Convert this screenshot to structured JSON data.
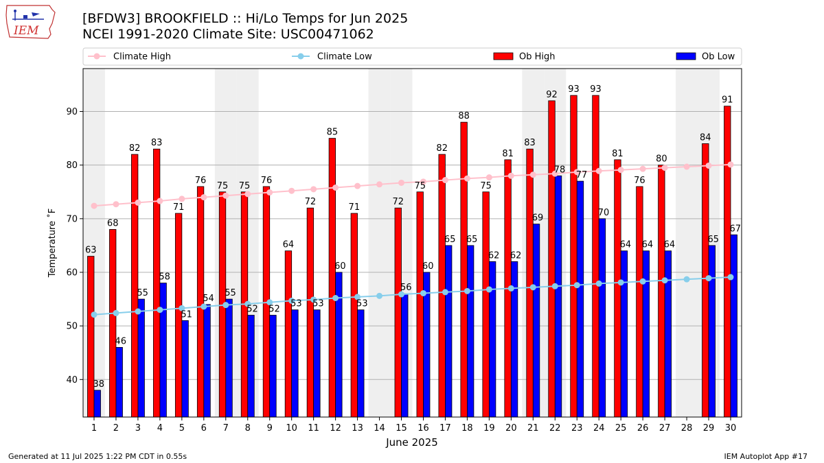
{
  "header": {
    "title_line1": "[BFDW3] BROOKFIELD :: Hi/Lo Temps for Jun 2025",
    "title_line2": "NCEI 1991-2020 Climate Site: USC00471062"
  },
  "footer": {
    "generated": "Generated at 11 Jul 2025 1:22 PM CDT in 0.55s",
    "app": "IEM Autoplot App #17"
  },
  "logo": {
    "text": "IEM",
    "icon": "iem-iowa-logo-icon"
  },
  "colors": {
    "ob_high": "#ff0000",
    "ob_low": "#0000ff",
    "climate_high": "#ffc0cb",
    "climate_low": "#87ceeb",
    "weekend_shade": "#efefef",
    "grid": "#b0b0b0"
  },
  "chart_data": {
    "type": "bar",
    "xlabel": "June 2025",
    "ylabel": "Temperature ˚F",
    "ylim": [
      33,
      98
    ],
    "yticks": [
      40,
      50,
      60,
      70,
      80,
      90
    ],
    "grid": "horizontal",
    "legend_position": "top",
    "categories": [
      "1",
      "2",
      "3",
      "4",
      "5",
      "6",
      "7",
      "8",
      "9",
      "10",
      "11",
      "12",
      "13",
      "14",
      "15",
      "16",
      "17",
      "18",
      "19",
      "20",
      "21",
      "22",
      "23",
      "24",
      "25",
      "26",
      "27",
      "28",
      "29",
      "30"
    ],
    "weekend_days": [
      1,
      7,
      8,
      14,
      15,
      21,
      22,
      28,
      29
    ],
    "series": [
      {
        "name": "Ob High",
        "kind": "bar",
        "values": [
          63,
          68,
          82,
          83,
          71,
          76,
          75,
          75,
          76,
          64,
          72,
          85,
          71,
          null,
          72,
          75,
          82,
          88,
          75,
          81,
          83,
          92,
          93,
          93,
          81,
          76,
          80,
          null,
          84,
          91
        ]
      },
      {
        "name": "Ob Low",
        "kind": "bar",
        "values": [
          38,
          46,
          55,
          58,
          51,
          54,
          55,
          52,
          52,
          53,
          53,
          60,
          53,
          null,
          56,
          60,
          65,
          65,
          62,
          62,
          69,
          78,
          77,
          70,
          64,
          64,
          64,
          null,
          65,
          67
        ]
      },
      {
        "name": "Climate High",
        "kind": "line",
        "values": [
          72.4,
          72.7,
          73.0,
          73.3,
          73.7,
          74.0,
          74.3,
          74.6,
          74.9,
          75.2,
          75.5,
          75.8,
          76.1,
          76.4,
          76.7,
          76.9,
          77.2,
          77.5,
          77.7,
          78.0,
          78.2,
          78.4,
          78.7,
          78.9,
          79.1,
          79.3,
          79.5,
          79.7,
          79.9,
          80.1
        ]
      },
      {
        "name": "Climate Low",
        "kind": "line",
        "values": [
          52.1,
          52.4,
          52.7,
          53.0,
          53.3,
          53.6,
          53.9,
          54.1,
          54.4,
          54.7,
          54.9,
          55.2,
          55.4,
          55.6,
          55.9,
          56.1,
          56.3,
          56.5,
          56.8,
          57.0,
          57.2,
          57.4,
          57.6,
          57.9,
          58.1,
          58.3,
          58.5,
          58.7,
          58.9,
          59.1
        ]
      }
    ]
  }
}
